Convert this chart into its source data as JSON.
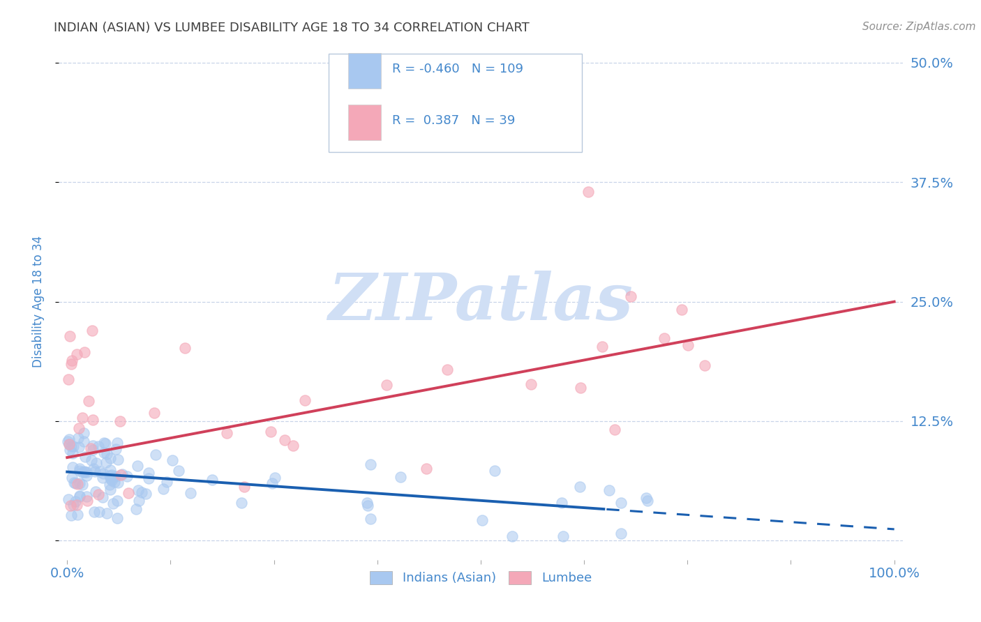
{
  "title": "INDIAN (ASIAN) VS LUMBEE DISABILITY AGE 18 TO 34 CORRELATION CHART",
  "source": "Source: ZipAtlas.com",
  "ylabel": "Disability Age 18 to 34",
  "y_ticks": [
    0.0,
    0.125,
    0.25,
    0.375,
    0.5
  ],
  "x_ticks": [
    0.0,
    0.125,
    0.25,
    0.375,
    0.5,
    0.625,
    0.75,
    0.875,
    1.0
  ],
  "xlim": [
    -0.01,
    1.01
  ],
  "ylim": [
    -0.02,
    0.52
  ],
  "indian_R": -0.46,
  "indian_N": 109,
  "lumbee_R": 0.387,
  "lumbee_N": 39,
  "indian_color": "#a8c8f0",
  "lumbee_color": "#f4a8b8",
  "indian_line_color": "#1a5fb0",
  "lumbee_line_color": "#d0405a",
  "indian_line_solid_end": 0.65,
  "indian_line_intercept": 0.072,
  "indian_line_slope": -0.06,
  "lumbee_line_intercept": 0.087,
  "lumbee_line_slope": 0.163,
  "legend_label_indian": "Indians (Asian)",
  "legend_label_lumbee": "Lumbee",
  "watermark_text": "ZIPatlas",
  "watermark_color": "#d0dff5",
  "background_color": "#ffffff",
  "grid_color": "#c8d4e8",
  "title_color": "#404040",
  "axis_label_color": "#4488cc",
  "tick_color": "#4488cc",
  "source_color": "#909090",
  "legend_box_color": "#e8edf5"
}
